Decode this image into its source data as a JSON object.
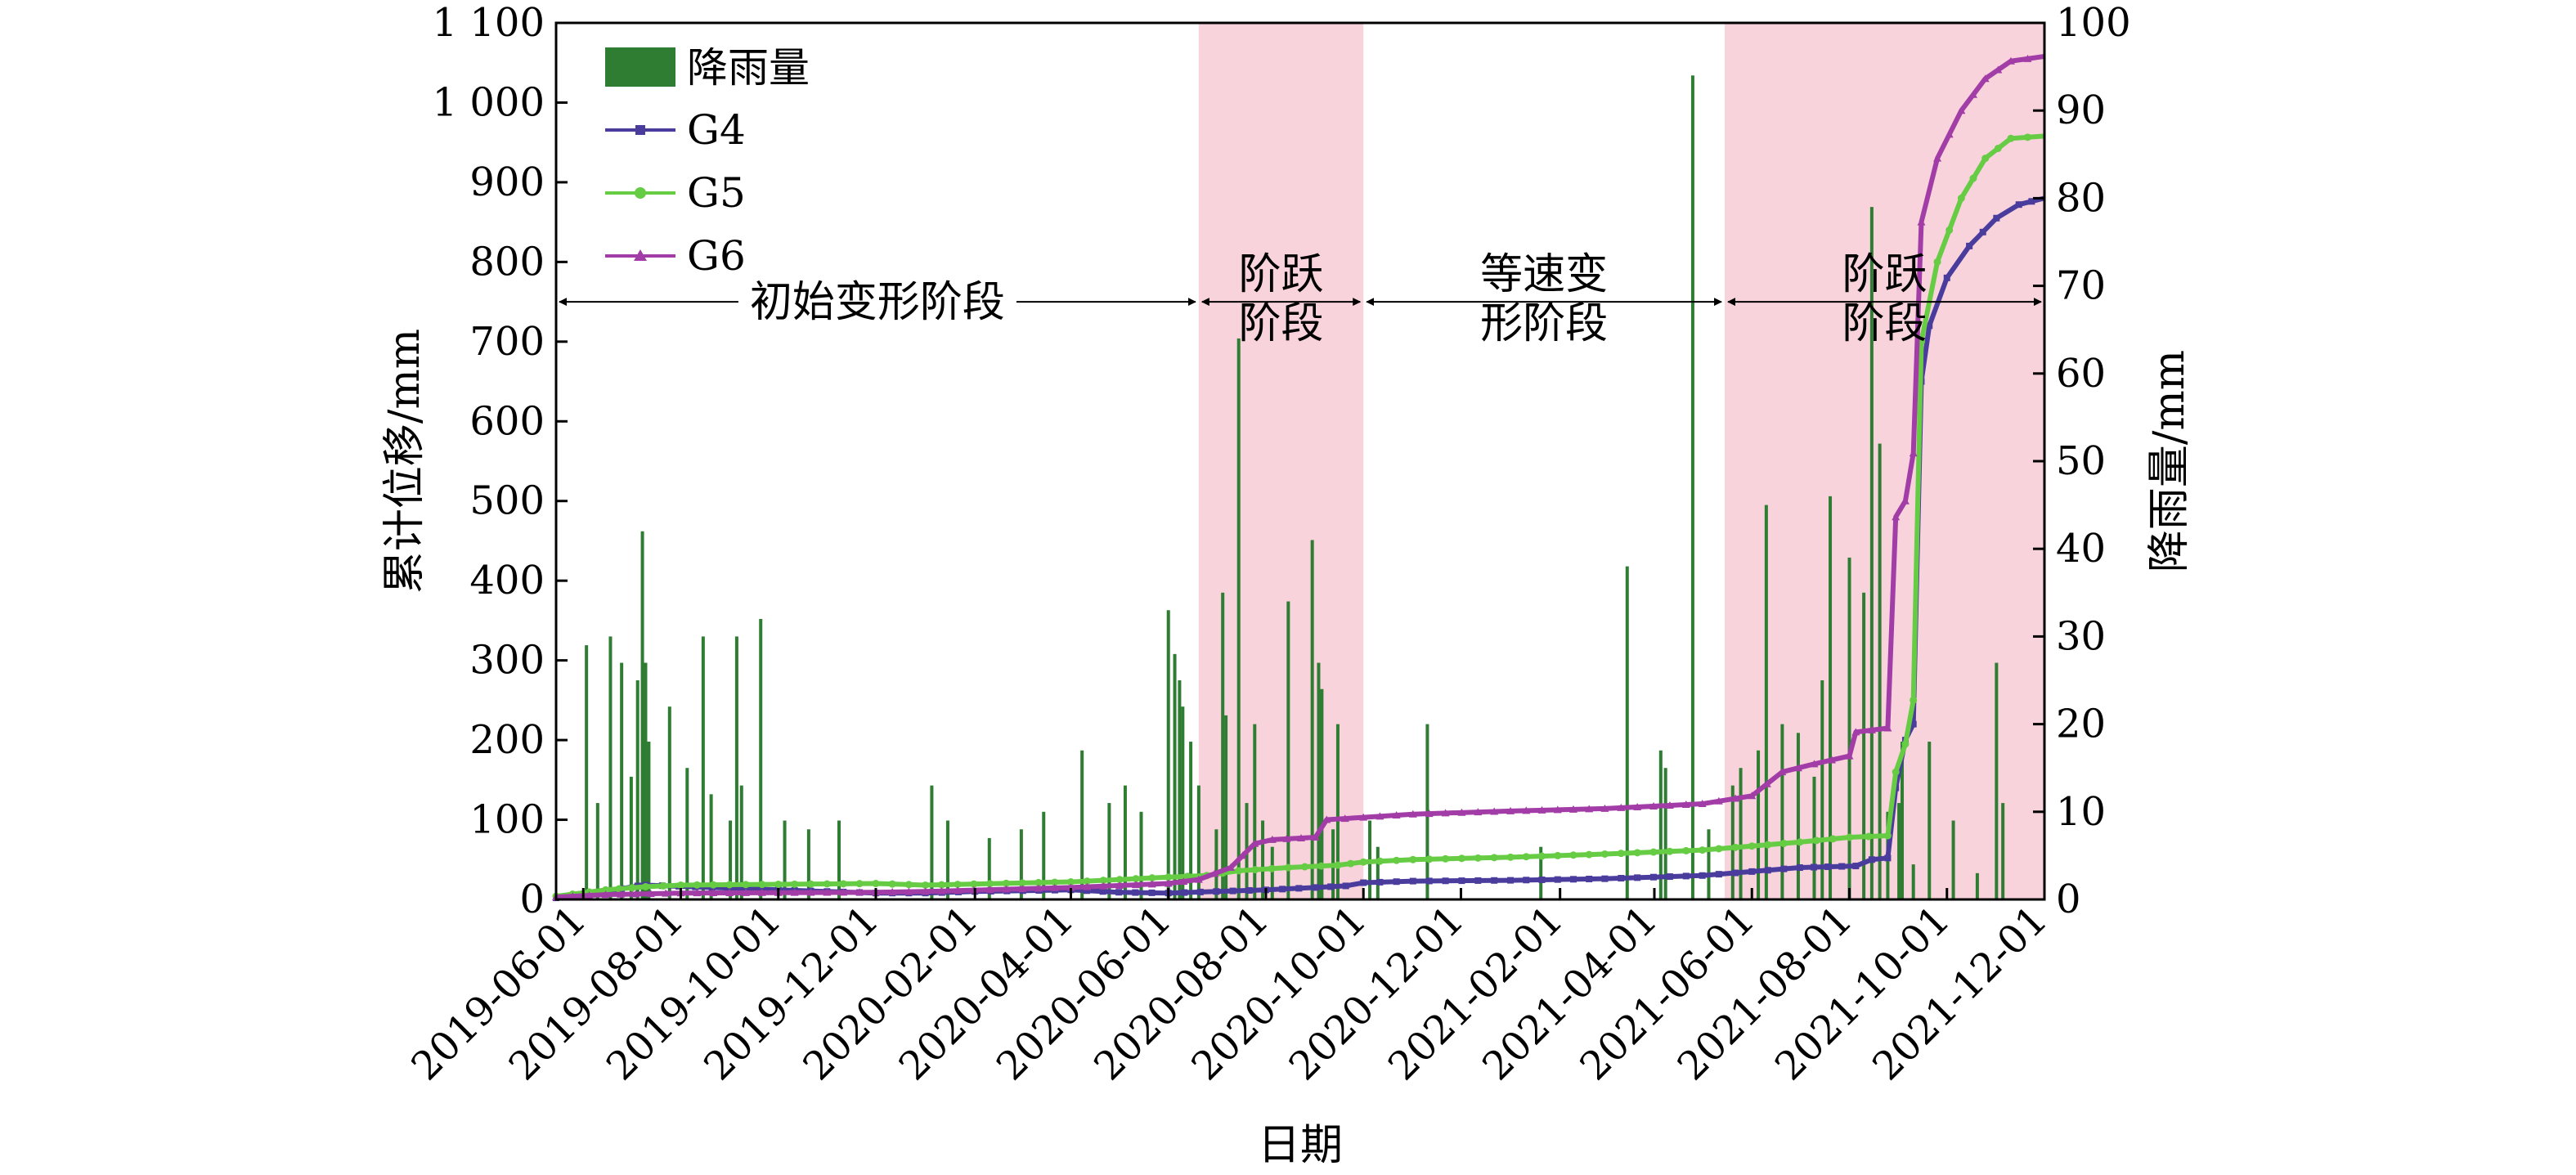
{
  "chart_data": {
    "type": "line",
    "xlabel": "日期",
    "ylabel_left": "累计位移/mm",
    "ylabel_right": "降雨量/mm",
    "ylim_left": [
      0,
      1100
    ],
    "ylim_right": [
      0,
      100
    ],
    "yticks_left": [
      0,
      100,
      200,
      300,
      400,
      500,
      600,
      700,
      800,
      900,
      1000,
      1100
    ],
    "yticks_left_labels": [
      "0",
      "100",
      "200",
      "300",
      "400",
      "500",
      "600",
      "700",
      "800",
      "900",
      "1 000",
      "1 100"
    ],
    "yticks_right": [
      0,
      10,
      20,
      30,
      40,
      50,
      60,
      70,
      80,
      90,
      100
    ],
    "yticks_right_labels": [
      "0",
      "10",
      "20",
      "30",
      "40",
      "50",
      "60",
      "70",
      "80",
      "90",
      "100"
    ],
    "xlim": [
      "2019-05-15",
      "2021-12-01"
    ],
    "xticks": [
      "2019-06-01",
      "2019-08-01",
      "2019-10-01",
      "2019-12-01",
      "2020-02-01",
      "2020-04-01",
      "2020-06-01",
      "2020-08-01",
      "2020-10-01",
      "2020-12-01",
      "2021-02-01",
      "2021-04-01",
      "2021-06-01",
      "2021-08-01",
      "2021-10-01",
      "2021-12-01"
    ],
    "legend_position": "top-left",
    "colors": {
      "rainfall": "#2e7d32",
      "G4": "#4a3c9c",
      "G5": "#66cc44",
      "G6": "#a23ca6",
      "shade": "#f8d3dc"
    },
    "shaded_stages": [
      {
        "start": "2020-06-20",
        "end": "2020-10-01"
      },
      {
        "start": "2021-05-15",
        "end": "2021-12-01"
      }
    ],
    "stage_labels": [
      {
        "lines": [
          "初始变形阶段"
        ],
        "start": "2019-05-15",
        "end": "2020-06-20"
      },
      {
        "lines": [
          "阶跃",
          "阶段"
        ],
        "start": "2020-06-20",
        "end": "2020-10-01"
      },
      {
        "lines": [
          "等速变",
          "形阶段"
        ],
        "start": "2020-10-01",
        "end": "2021-05-15"
      },
      {
        "lines": [
          "阶跃",
          "阶段"
        ],
        "start": "2021-05-15",
        "end": "2021-12-01"
      }
    ],
    "stage_arrow_y": 750,
    "rainfall": {
      "name": "降雨量",
      "dates": [
        "2019-06-03",
        "2019-06-10",
        "2019-06-18",
        "2019-06-25",
        "2019-07-01",
        "2019-07-05",
        "2019-07-08",
        "2019-07-10",
        "2019-07-12",
        "2019-07-25",
        "2019-08-05",
        "2019-08-15",
        "2019-08-20",
        "2019-09-01",
        "2019-09-05",
        "2019-09-08",
        "2019-09-20",
        "2019-10-05",
        "2019-10-20",
        "2019-11-08",
        "2020-01-05",
        "2020-01-15",
        "2020-02-10",
        "2020-03-01",
        "2020-03-15",
        "2020-04-08",
        "2020-04-25",
        "2020-05-05",
        "2020-05-15",
        "2020-06-01",
        "2020-06-05",
        "2020-06-08",
        "2020-06-10",
        "2020-06-15",
        "2020-06-20",
        "2020-07-01",
        "2020-07-05",
        "2020-07-07",
        "2020-07-15",
        "2020-07-20",
        "2020-07-25",
        "2020-07-30",
        "2020-08-05",
        "2020-08-15",
        "2020-08-30",
        "2020-09-03",
        "2020-09-05",
        "2020-09-12",
        "2020-09-15",
        "2020-10-05",
        "2020-10-10",
        "2020-11-10",
        "2021-01-20",
        "2021-03-15",
        "2021-04-05",
        "2021-04-08",
        "2021-04-25",
        "2021-05-05",
        "2021-05-20",
        "2021-05-25",
        "2021-06-05",
        "2021-06-10",
        "2021-06-20",
        "2021-06-30",
        "2021-07-10",
        "2021-07-15",
        "2021-07-20",
        "2021-08-01",
        "2021-08-10",
        "2021-08-15",
        "2021-08-20",
        "2021-08-25",
        "2021-09-01",
        "2021-09-03",
        "2021-09-10",
        "2021-09-20",
        "2021-10-05",
        "2021-10-20",
        "2021-11-01",
        "2021-11-05"
      ],
      "values": [
        29,
        11,
        30,
        27,
        14,
        25,
        42,
        27,
        18,
        22,
        15,
        30,
        12,
        9,
        30,
        13,
        32,
        9,
        8,
        9,
        13,
        9,
        7,
        8,
        10,
        17,
        11,
        13,
        10,
        33,
        28,
        25,
        22,
        18,
        13,
        8,
        35,
        21,
        64,
        11,
        20,
        9,
        6,
        34,
        41,
        27,
        24,
        8,
        20,
        9,
        6,
        20,
        6,
        38,
        17,
        15,
        94,
        8,
        13,
        15,
        17,
        45,
        20,
        19,
        14,
        25,
        46,
        39,
        35,
        79,
        52,
        10,
        11,
        18,
        4,
        18,
        9,
        3,
        27,
        11
      ]
    },
    "series": [
      {
        "name": "G4",
        "points": [
          [
            "2019-05-15",
            2
          ],
          [
            "2019-06-15",
            10
          ],
          [
            "2019-07-05",
            17
          ],
          [
            "2019-07-10",
            18
          ],
          [
            "2019-10-01",
            12
          ],
          [
            "2019-12-01",
            8
          ],
          [
            "2020-01-01",
            8
          ],
          [
            "2020-02-01",
            10
          ],
          [
            "2020-04-01",
            12
          ],
          [
            "2020-05-01",
            9
          ],
          [
            "2020-06-01",
            8
          ],
          [
            "2020-07-01",
            10
          ],
          [
            "2020-08-01",
            12
          ],
          [
            "2020-09-01",
            15
          ],
          [
            "2020-09-20",
            17
          ],
          [
            "2020-10-01",
            21
          ],
          [
            "2020-11-01",
            23
          ],
          [
            "2021-01-01",
            24
          ],
          [
            "2021-03-01",
            26
          ],
          [
            "2021-05-01",
            30
          ],
          [
            "2021-06-01",
            35
          ],
          [
            "2021-07-01",
            40
          ],
          [
            "2021-08-05",
            42
          ],
          [
            "2021-08-15",
            50
          ],
          [
            "2021-08-25",
            52
          ],
          [
            "2021-08-30",
            140
          ],
          [
            "2021-09-05",
            200
          ],
          [
            "2021-09-10",
            220
          ],
          [
            "2021-09-15",
            650
          ],
          [
            "2021-09-20",
            720
          ],
          [
            "2021-10-01",
            780
          ],
          [
            "2021-10-15",
            820
          ],
          [
            "2021-11-01",
            855
          ],
          [
            "2021-11-15",
            872
          ],
          [
            "2021-12-01",
            880
          ]
        ]
      },
      {
        "name": "G5",
        "points": [
          [
            "2019-05-15",
            4
          ],
          [
            "2019-06-15",
            12
          ],
          [
            "2019-07-10",
            16
          ],
          [
            "2019-08-01",
            18
          ],
          [
            "2019-12-01",
            20
          ],
          [
            "2020-01-01",
            18
          ],
          [
            "2020-04-01",
            22
          ],
          [
            "2020-06-01",
            28
          ],
          [
            "2020-06-25",
            30
          ],
          [
            "2020-07-15",
            36
          ],
          [
            "2020-08-15",
            40
          ],
          [
            "2020-09-15",
            43
          ],
          [
            "2020-10-01",
            47
          ],
          [
            "2020-11-01",
            50
          ],
          [
            "2021-01-01",
            53
          ],
          [
            "2021-03-01",
            57
          ],
          [
            "2021-05-01",
            62
          ],
          [
            "2021-06-01",
            67
          ],
          [
            "2021-07-01",
            72
          ],
          [
            "2021-08-01",
            78
          ],
          [
            "2021-08-25",
            80
          ],
          [
            "2021-08-30",
            160
          ],
          [
            "2021-09-05",
            195
          ],
          [
            "2021-09-10",
            250
          ],
          [
            "2021-09-15",
            700
          ],
          [
            "2021-09-25",
            800
          ],
          [
            "2021-10-10",
            880
          ],
          [
            "2021-10-25",
            930
          ],
          [
            "2021-11-10",
            955
          ],
          [
            "2021-12-01",
            958
          ]
        ]
      },
      {
        "name": "G6",
        "points": [
          [
            "2019-05-15",
            3
          ],
          [
            "2019-06-15",
            6
          ],
          [
            "2019-08-01",
            8
          ],
          [
            "2019-12-01",
            9
          ],
          [
            "2020-01-01",
            10
          ],
          [
            "2020-04-01",
            15
          ],
          [
            "2020-06-01",
            20
          ],
          [
            "2020-06-20",
            25
          ],
          [
            "2020-07-10",
            40
          ],
          [
            "2020-07-25",
            70
          ],
          [
            "2020-08-05",
            75
          ],
          [
            "2020-09-01",
            78
          ],
          [
            "2020-09-08",
            100
          ],
          [
            "2020-10-01",
            103
          ],
          [
            "2020-11-01",
            107
          ],
          [
            "2021-01-01",
            111
          ],
          [
            "2021-03-01",
            114
          ],
          [
            "2021-05-01",
            120
          ],
          [
            "2021-06-01",
            130
          ],
          [
            "2021-06-20",
            160
          ],
          [
            "2021-07-10",
            170
          ],
          [
            "2021-08-01",
            180
          ],
          [
            "2021-08-05",
            210
          ],
          [
            "2021-08-25",
            215
          ],
          [
            "2021-08-30",
            480
          ],
          [
            "2021-09-05",
            500
          ],
          [
            "2021-09-10",
            560
          ],
          [
            "2021-09-15",
            850
          ],
          [
            "2021-09-25",
            930
          ],
          [
            "2021-10-10",
            990
          ],
          [
            "2021-10-25",
            1030
          ],
          [
            "2021-11-10",
            1052
          ],
          [
            "2021-12-01",
            1058
          ]
        ]
      }
    ]
  }
}
